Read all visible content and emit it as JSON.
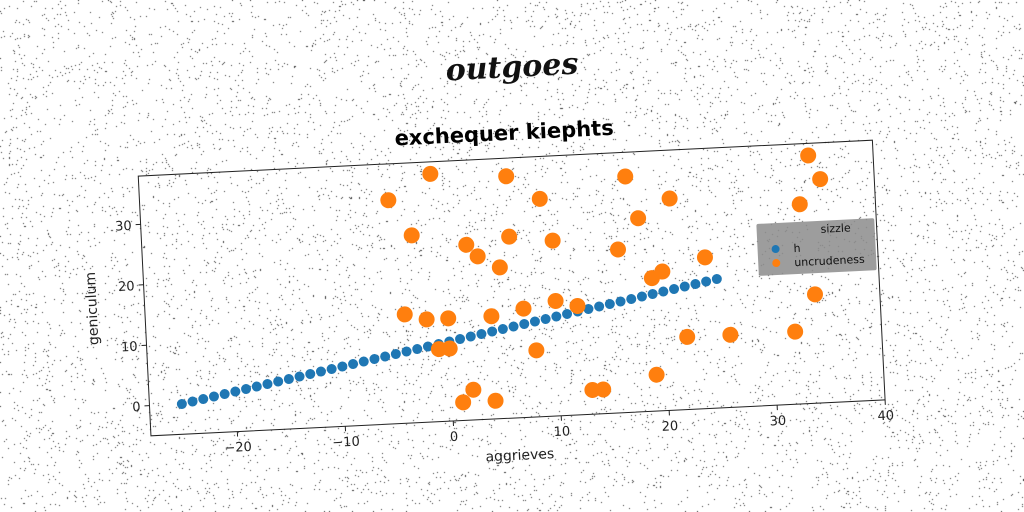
{
  "figure": {
    "suptitle": "outgoes"
  },
  "chart_data": {
    "type": "scatter",
    "title": "exchequer kiephts",
    "xlabel": "aggrieves",
    "ylabel": "geniculum",
    "xlim": [
      -28,
      40
    ],
    "ylim": [
      -5,
      38
    ],
    "xticks": [
      -20,
      -10,
      0,
      10,
      20,
      30,
      40
    ],
    "yticks": [
      0,
      10,
      20,
      30
    ],
    "grid": false,
    "legend": {
      "title": "sizzle",
      "placement": "right"
    },
    "series": [
      {
        "name": "h",
        "color": "#1f77b4",
        "x": [
          -25,
          -24,
          -23,
          -22,
          -21,
          -20,
          -19,
          -18,
          -17,
          -16,
          -15,
          -14,
          -13,
          -12,
          -11,
          -10,
          -9,
          -8,
          -7,
          -6,
          -5,
          -4,
          -3,
          -2,
          -1,
          0,
          1,
          2,
          3,
          4,
          5,
          6,
          7,
          8,
          9,
          10,
          11,
          12,
          13,
          14,
          15,
          16,
          17,
          18,
          19,
          20,
          21,
          22,
          23,
          24,
          25
        ],
        "y": [
          0,
          0.33,
          0.65,
          0.98,
          1.3,
          1.63,
          1.96,
          2.28,
          2.61,
          2.94,
          3.26,
          3.59,
          3.92,
          4.24,
          4.57,
          4.9,
          5.22,
          5.55,
          5.88,
          6.2,
          6.53,
          6.86,
          7.18,
          7.51,
          7.84,
          8.16,
          8.49,
          8.82,
          9.14,
          9.47,
          9.8,
          10.12,
          10.45,
          10.78,
          11.1,
          11.43,
          11.76,
          12.08,
          12.41,
          12.74,
          13.06,
          13.39,
          13.71,
          14.04,
          14.37,
          14.69,
          15.02,
          15.35,
          15.67,
          16,
          16.33
        ]
      },
      {
        "name": "uncrudeness",
        "color": "#ff7f0e",
        "x": [
          -5,
          -3,
          -1,
          -4,
          0,
          2,
          4,
          6,
          9,
          10,
          13,
          17,
          18,
          21,
          20,
          24,
          35,
          34,
          33,
          -2,
          0,
          2,
          3,
          5,
          7,
          10,
          14,
          16,
          19,
          -1,
          1,
          4,
          6,
          8,
          12,
          19,
          22,
          26,
          32,
          34
        ],
        "y": [
          32,
          26,
          36,
          13,
          7,
          0,
          -2,
          35,
          31,
          24,
          -1,
          34,
          27,
          30,
          18,
          20,
          32,
          36,
          28,
          12,
          12,
          24,
          22,
          20,
          13,
          14,
          -1,
          22,
          1,
          7,
          -2,
          12,
          25,
          6,
          13,
          17,
          7,
          7,
          7,
          13
        ]
      }
    ]
  }
}
